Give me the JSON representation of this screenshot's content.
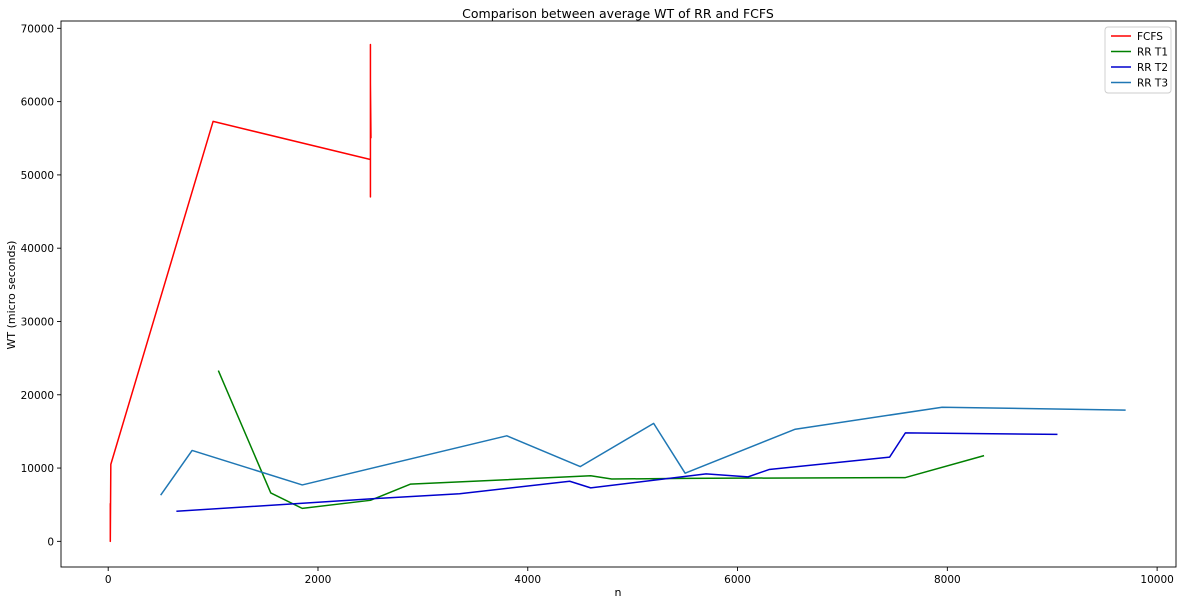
{
  "chart_data": {
    "type": "line",
    "title": "Comparison between average WT of RR and FCFS",
    "xlabel": "n",
    "ylabel": "WT (micro seconds)",
    "xlim": [
      -450,
      10180
    ],
    "ylim": [
      -3500,
      71000
    ],
    "xticks": [
      0,
      2000,
      4000,
      6000,
      8000,
      10000
    ],
    "xtick_labels": [
      "0",
      "2000",
      "4000",
      "6000",
      "8000",
      "10000"
    ],
    "yticks": [
      0,
      10000,
      20000,
      30000,
      40000,
      50000,
      60000,
      70000
    ],
    "ytick_labels": [
      "0",
      "10000",
      "20000",
      "30000",
      "40000",
      "50000",
      "60000",
      "70000"
    ],
    "grid": false,
    "legend": "top-right",
    "series": [
      {
        "name": "FCFS",
        "color": "#ff0000",
        "points": [
          [
            20,
            5200
          ],
          [
            20,
            0
          ],
          [
            25,
            10500
          ],
          [
            1000,
            57300
          ],
          [
            2500,
            52100
          ],
          [
            2500,
            67800
          ],
          [
            2500,
            47000
          ],
          [
            2500,
            62500
          ],
          [
            2505,
            55000
          ]
        ]
      },
      {
        "name": "RR T1",
        "color": "#008000",
        "points": [
          [
            1050,
            23300
          ],
          [
            1550,
            6600
          ],
          [
            1850,
            4500
          ],
          [
            2500,
            5600
          ],
          [
            2880,
            7800
          ],
          [
            4600,
            8950
          ],
          [
            4800,
            8500
          ],
          [
            5500,
            8600
          ],
          [
            7600,
            8700
          ],
          [
            8350,
            11700
          ]
        ]
      },
      {
        "name": "RR T2",
        "color": "#0000cd",
        "points": [
          [
            650,
            4100
          ],
          [
            2500,
            5800
          ],
          [
            3350,
            6500
          ],
          [
            4400,
            8200
          ],
          [
            4600,
            7300
          ],
          [
            5700,
            9200
          ],
          [
            6100,
            8800
          ],
          [
            6300,
            9800
          ],
          [
            7450,
            11500
          ],
          [
            7600,
            14800
          ],
          [
            9050,
            14600
          ]
        ]
      },
      {
        "name": "RR T3",
        "color": "#1f77b4",
        "points": [
          [
            500,
            6300
          ],
          [
            800,
            12400
          ],
          [
            1850,
            7700
          ],
          [
            3800,
            14400
          ],
          [
            4500,
            10200
          ],
          [
            5200,
            16100
          ],
          [
            5500,
            9300
          ],
          [
            6550,
            15300
          ],
          [
            7950,
            18300
          ],
          [
            9700,
            17900
          ]
        ]
      }
    ]
  }
}
